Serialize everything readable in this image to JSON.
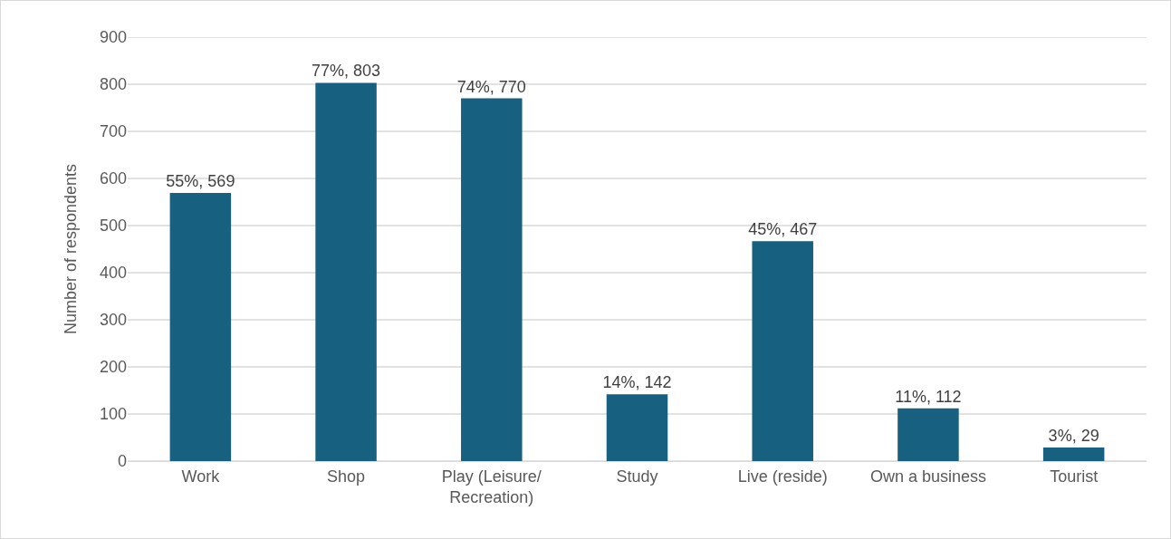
{
  "chart_data": {
    "type": "bar",
    "ylabel": "Number of respondents",
    "categories": [
      "Work",
      "Shop",
      "Play (Leisure/Recreation)",
      "Study",
      "Live (reside)",
      "Own a business",
      "Tourist"
    ],
    "values": [
      569,
      803,
      770,
      142,
      467,
      112,
      29
    ],
    "value_labels": [
      "55%, 569",
      "77%, 803",
      "74%, 770",
      "14%, 142",
      "45%, 467",
      "11%, 112",
      "3%, 29"
    ],
    "color": "#17607f",
    "ylim": [
      0,
      900
    ],
    "yticks": [
      0,
      100,
      200,
      300,
      400,
      500,
      600,
      700,
      800,
      900
    ],
    "grid": "y"
  }
}
